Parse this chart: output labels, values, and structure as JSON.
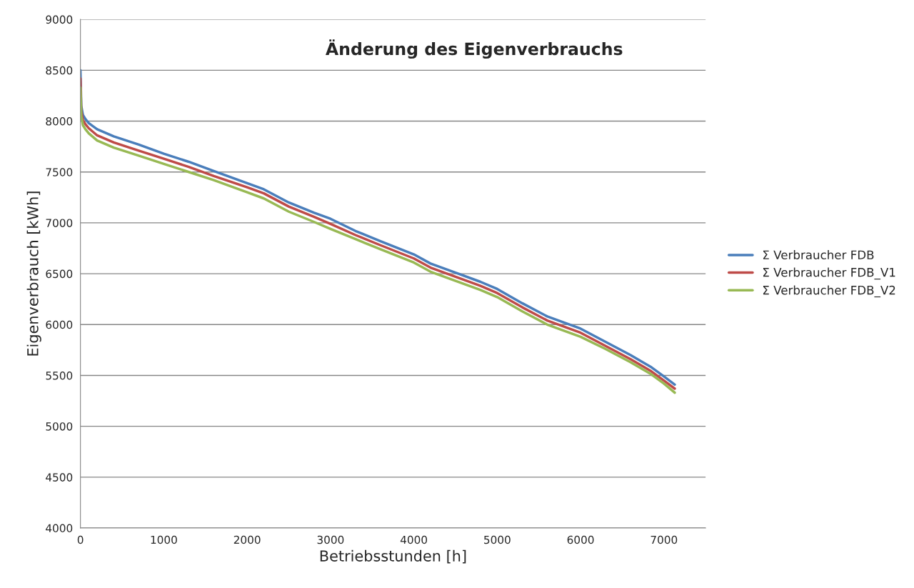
{
  "chart_data": {
    "type": "line",
    "title": "Änderung des Eigenverbrauchs",
    "xlabel": "Betriebsstunden [h]",
    "ylabel": "Eigenverbrauch [kWh]",
    "xlim": [
      0,
      7500
    ],
    "xticks": [
      0,
      1000,
      2000,
      3000,
      4000,
      5000,
      6000,
      7000
    ],
    "ylim": [
      4000,
      9000
    ],
    "yticks": [
      4000,
      4500,
      5000,
      5500,
      6000,
      6500,
      7000,
      7500,
      8000,
      8500,
      9000
    ],
    "grid": "y",
    "legend": "right",
    "marker": "none",
    "line_style": "solid",
    "series": [
      {
        "name": "Σ Verbraucher FDB",
        "color": "#4a7ebb",
        "x": [
          0,
          10,
          30,
          60,
          100,
          200,
          400,
          700,
          1000,
          1300,
          1600,
          2000,
          2200,
          2500,
          2800,
          3000,
          3300,
          3600,
          4000,
          4200,
          4500,
          4800,
          5000,
          5300,
          5600,
          6000,
          6300,
          6600,
          6850,
          7000,
          7130
        ],
        "values": [
          8500,
          8150,
          8060,
          8020,
          7980,
          7920,
          7850,
          7770,
          7680,
          7600,
          7510,
          7390,
          7330,
          7200,
          7100,
          7040,
          6920,
          6820,
          6690,
          6600,
          6510,
          6420,
          6350,
          6210,
          6080,
          5960,
          5830,
          5700,
          5580,
          5490,
          5410
        ]
      },
      {
        "name": "Σ Verbraucher FDB_V1",
        "color": "#be4b48",
        "x": [
          0,
          10,
          30,
          60,
          100,
          200,
          400,
          700,
          1000,
          1300,
          1600,
          2000,
          2200,
          2500,
          2800,
          3000,
          3300,
          3600,
          4000,
          4200,
          4500,
          4800,
          5000,
          5300,
          5600,
          6000,
          6300,
          6600,
          6850,
          7000,
          7130
        ],
        "values": [
          8420,
          8100,
          8010,
          7970,
          7930,
          7860,
          7790,
          7710,
          7630,
          7550,
          7460,
          7350,
          7290,
          7160,
          7060,
          6990,
          6880,
          6780,
          6650,
          6560,
          6470,
          6380,
          6310,
          6170,
          6040,
          5920,
          5790,
          5660,
          5540,
          5450,
          5370
        ]
      },
      {
        "name": "Σ Verbraucher FDB_V2",
        "color": "#98b954",
        "x": [
          0,
          10,
          30,
          60,
          100,
          200,
          400,
          700,
          1000,
          1300,
          1600,
          2000,
          2200,
          2500,
          2800,
          3000,
          3300,
          3600,
          4000,
          4200,
          4500,
          4800,
          5000,
          5300,
          5600,
          6000,
          6300,
          6600,
          6850,
          7000,
          7130
        ],
        "values": [
          8330,
          8050,
          7960,
          7920,
          7880,
          7810,
          7740,
          7660,
          7580,
          7500,
          7420,
          7300,
          7240,
          7110,
          7010,
          6940,
          6840,
          6740,
          6610,
          6520,
          6430,
          6340,
          6270,
          6130,
          6000,
          5880,
          5760,
          5630,
          5510,
          5420,
          5330
        ]
      }
    ]
  }
}
